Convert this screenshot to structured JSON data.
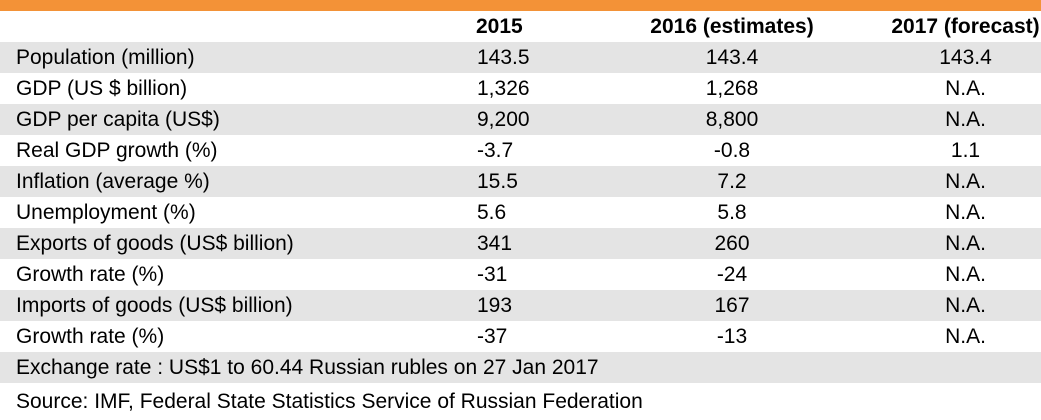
{
  "header": {
    "columns": [
      "",
      "2015",
      "2016 (estimates)",
      "2017 (forecast)"
    ]
  },
  "rows": [
    {
      "label": "Population (million)",
      "v2015": "143.5",
      "v2016": "143.4",
      "v2017": "143.4"
    },
    {
      "label": "GDP (US $ billion)",
      "v2015": "1,326",
      "v2016": "1,268",
      "v2017": "N.A."
    },
    {
      "label": "GDP per capita (US$)",
      "v2015": "9,200",
      "v2016": "8,800",
      "v2017": "N.A."
    },
    {
      "label": "Real GDP growth (%)",
      "v2015": "-3.7",
      "v2016": "-0.8",
      "v2017": "1.1"
    },
    {
      "label": "Inflation (average %)",
      "v2015": "15.5",
      "v2016": "7.2",
      "v2017": "N.A."
    },
    {
      "label": "Unemployment (%)",
      "v2015": "5.6",
      "v2016": "5.8",
      "v2017": "N.A."
    },
    {
      "label": "Exports of goods (US$ billion)",
      "v2015": "341",
      "v2016": "260",
      "v2017": "N.A."
    },
    {
      "label": "Growth rate (%)",
      "v2015": "-31",
      "v2016": "-24",
      "v2017": "N.A."
    },
    {
      "label": "Imports of goods (US$ billion)",
      "v2015": "193",
      "v2016": "167",
      "v2017": "N.A."
    },
    {
      "label": "Growth rate (%)",
      "v2015": "-37",
      "v2016": "-13",
      "v2017": "N.A."
    }
  ],
  "notes": {
    "exchange_rate": "Exchange rate : US$1 to 60.44 Russian rubles on 27 Jan 2017",
    "source": "Source: IMF, Federal State Statistics Service of Russian Federation"
  },
  "colors": {
    "accent_bar": "#f39237",
    "row_shade": "#e4e4e4"
  }
}
